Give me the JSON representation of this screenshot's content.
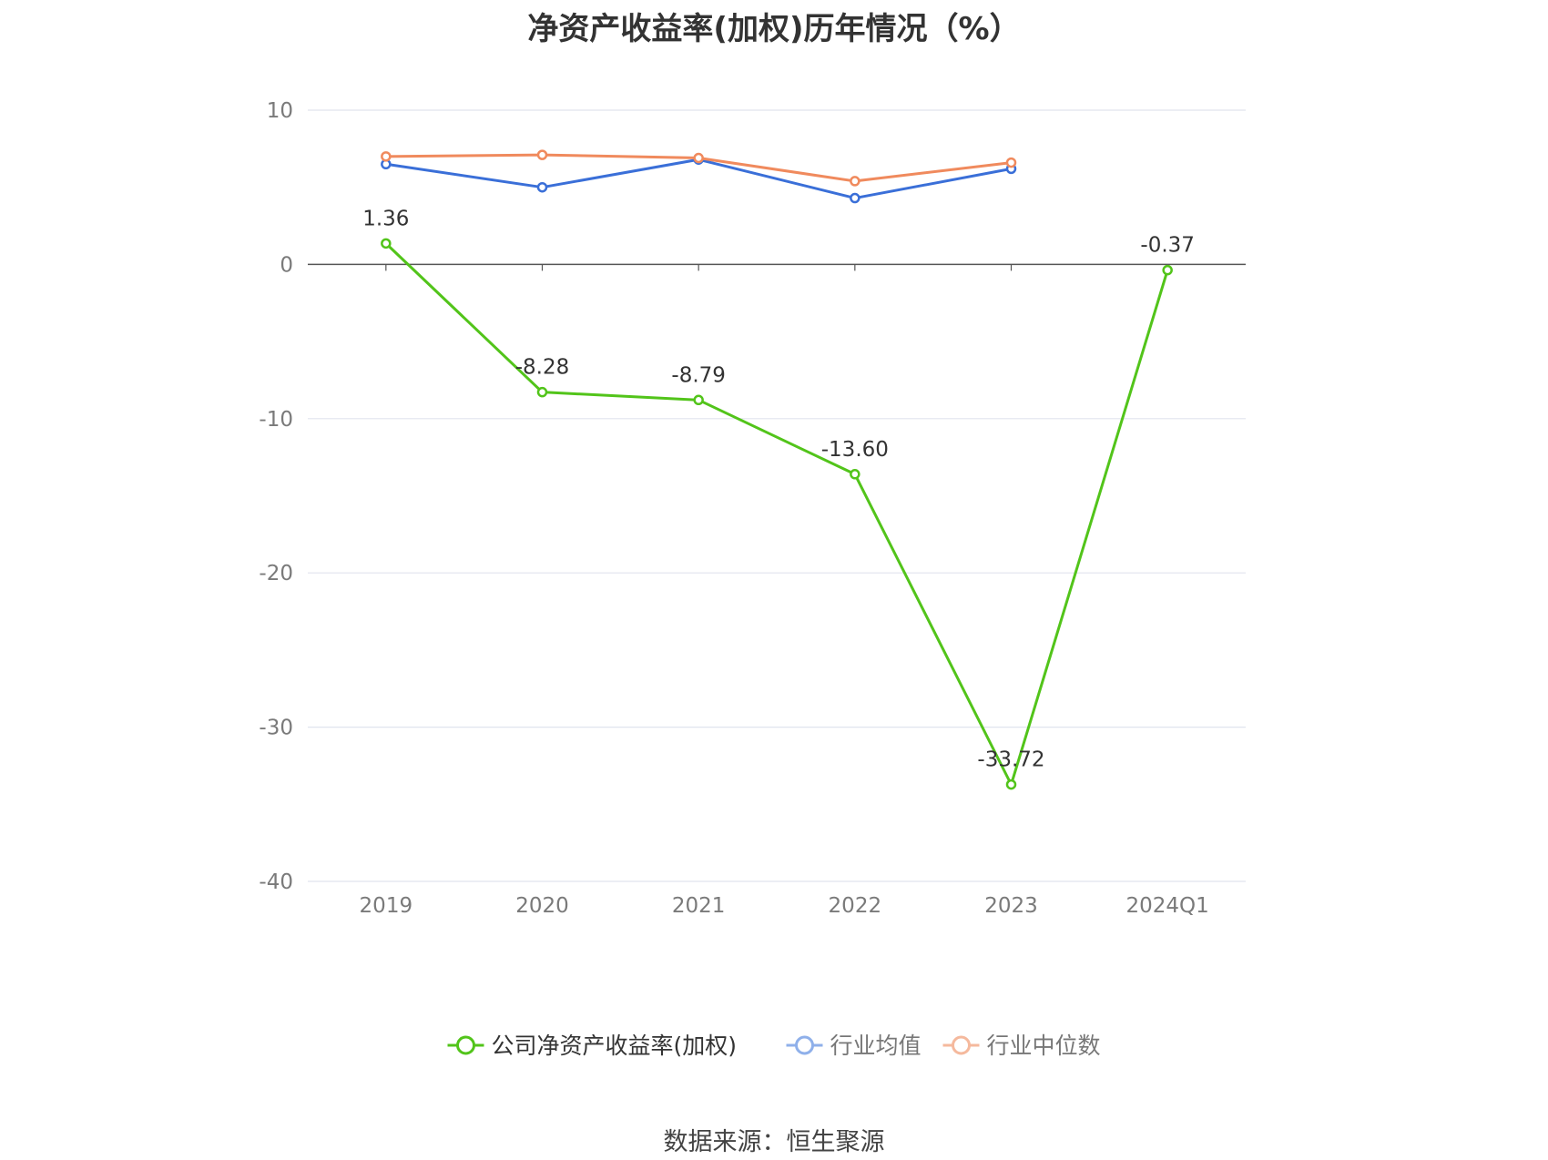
{
  "title": "净资产收益率(加权)历年情况（%）",
  "source": "数据来源：恒生聚源",
  "chart_data": {
    "type": "line",
    "categories": [
      "2019",
      "2020",
      "2021",
      "2022",
      "2023",
      "2024Q1"
    ],
    "ylim": [
      -40,
      10
    ],
    "yticks": [
      10,
      0,
      -10,
      -20,
      -30,
      -40
    ],
    "grid": true,
    "legend_position": "bottom",
    "series": [
      {
        "name": "公司净资产收益率(加权)",
        "color": "#52c41a",
        "values": [
          1.36,
          -8.28,
          -8.79,
          -13.6,
          -33.72,
          -0.37
        ],
        "labels": [
          "1.36",
          "-8.28",
          "-8.79",
          "-13.60",
          "-33.72",
          "-0.37"
        ]
      },
      {
        "name": "行业均值",
        "color": "#3a6fd8",
        "legend_color": "#8fb0ea",
        "values": [
          6.5,
          5.0,
          6.8,
          4.3,
          6.2,
          null
        ]
      },
      {
        "name": "行业中位数",
        "color": "#f08a5d",
        "legend_color": "#f5b99d",
        "values": [
          7.0,
          7.1,
          6.9,
          5.4,
          6.6,
          null
        ]
      }
    ]
  }
}
